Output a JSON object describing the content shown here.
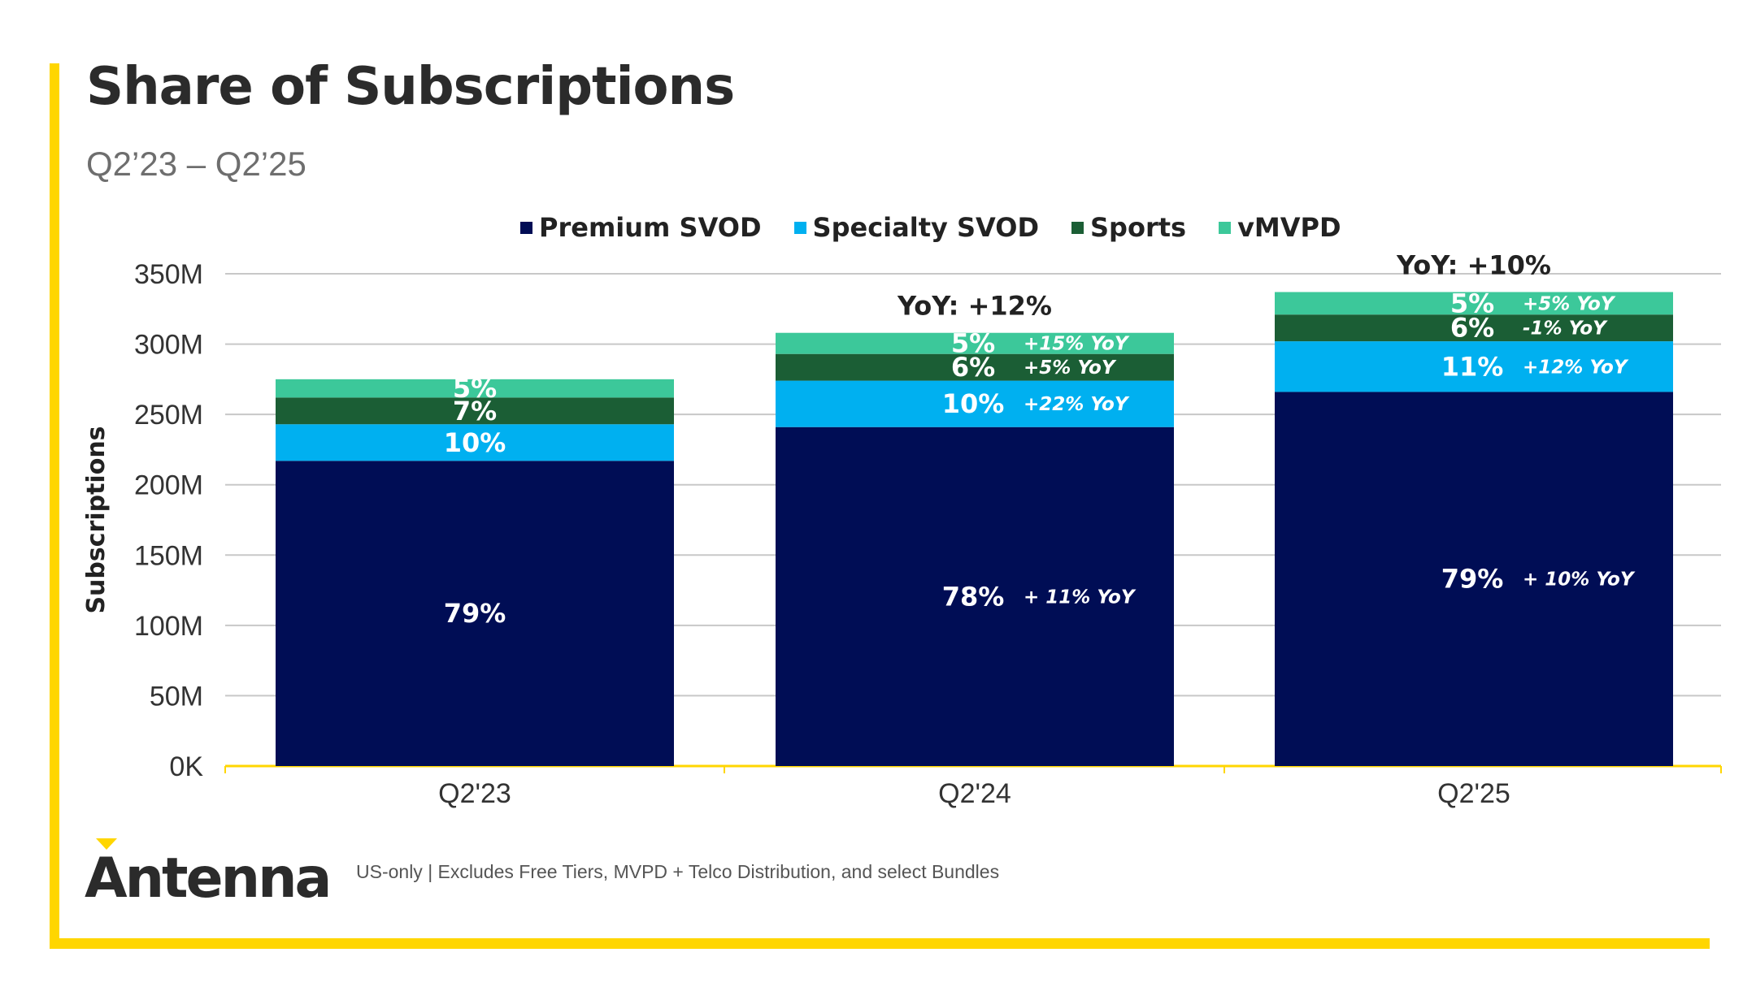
{
  "header": {
    "title": "Share of Subscriptions",
    "subtitle": "Q2’23 – Q2’25"
  },
  "footer": {
    "logo_text": "Antenna",
    "note": "US-only | Excludes Free Tiers, MVPD + Telco Distribution, and select Bundles"
  },
  "colors": {
    "brand_yellow": "#FFD600",
    "premium_svod": "#000D55",
    "specialty_svod": "#00B0F0",
    "sports": "#1B5E35",
    "vmvpd": "#3CC89A"
  },
  "chart_data": {
    "type": "bar",
    "stacked": true,
    "categories": [
      "Q2'23",
      "Q2'24",
      "Q2'25"
    ],
    "ylabel": "Subscriptions",
    "ylim": [
      0,
      350
    ],
    "yunit": "M",
    "yticks": [
      "0K",
      "50M",
      "100M",
      "150M",
      "200M",
      "250M",
      "300M",
      "350M"
    ],
    "grid": true,
    "legend_position": "top",
    "series": [
      {
        "name": "Premium SVOD",
        "color": "#000D55",
        "values": [
          217,
          241,
          266
        ],
        "labels": [
          "79%",
          "78%",
          "79%"
        ],
        "yoy": [
          "",
          "+ 11% YoY",
          "+ 10% YoY"
        ]
      },
      {
        "name": "Specialty SVOD",
        "color": "#00B0F0",
        "values": [
          26,
          33,
          36
        ],
        "labels": [
          "10%",
          "10%",
          "11%"
        ],
        "yoy": [
          "",
          "+22% YoY",
          "+12% YoY"
        ]
      },
      {
        "name": "Sports",
        "color": "#1B5E35",
        "values": [
          19,
          19,
          19
        ],
        "labels": [
          "7%",
          "6%",
          "6%"
        ],
        "yoy": [
          "",
          "+5% YoY",
          "-1% YoY"
        ]
      },
      {
        "name": "vMVPD",
        "color": "#3CC89A",
        "values": [
          13,
          15,
          16
        ],
        "labels": [
          "5%",
          "5%",
          "5%"
        ],
        "yoy": [
          "",
          "+15% YoY",
          "+5% YoY"
        ]
      }
    ],
    "totals_annotations": [
      "",
      "YoY: +12%",
      "YoY: +10%"
    ]
  }
}
